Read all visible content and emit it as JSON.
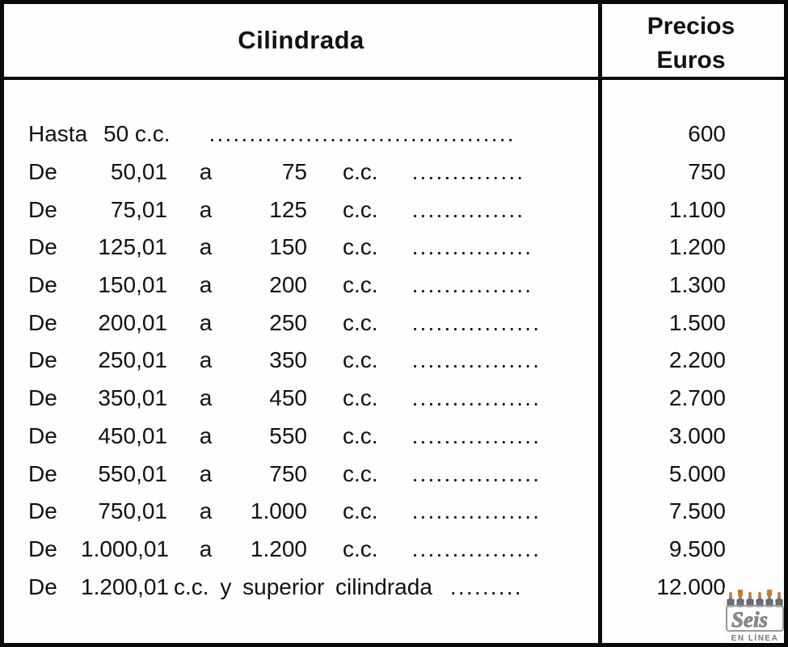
{
  "header": {
    "col1": "Cilindrada",
    "col2_line1": "Precios",
    "col2_line2": "Euros"
  },
  "rows": [
    {
      "kind": "hasta",
      "label": "Hasta",
      "range": "50 c.c.",
      "dots": "......................................",
      "price": "600"
    },
    {
      "kind": "range",
      "label": "De",
      "from": "50,01",
      "conj": "a",
      "to": "75",
      "cc": "c.c.",
      "dots": "..............",
      "price": "750"
    },
    {
      "kind": "range",
      "label": "De",
      "from": "75,01",
      "conj": "a",
      "to": "125",
      "cc": "c.c.",
      "dots": "..............",
      "price": "1.100"
    },
    {
      "kind": "range",
      "label": "De",
      "from": "125,01",
      "conj": "a",
      "to": "150",
      "cc": "c.c.",
      "dots": "...............",
      "price": "1.200"
    },
    {
      "kind": "range",
      "label": "De",
      "from": "150,01",
      "conj": "a",
      "to": "200",
      "cc": "c.c.",
      "dots": "...............",
      "price": "1.300"
    },
    {
      "kind": "range",
      "label": "De",
      "from": "200,01",
      "conj": "a",
      "to": "250",
      "cc": "c.c.",
      "dots": "................",
      "price": "1.500"
    },
    {
      "kind": "range",
      "label": "De",
      "from": "250,01",
      "conj": "a",
      "to": "350",
      "cc": "c.c.",
      "dots": "................",
      "price": "2.200"
    },
    {
      "kind": "range",
      "label": "De",
      "from": "350,01",
      "conj": "a",
      "to": "450",
      "cc": "c.c.",
      "dots": "................",
      "price": "2.700"
    },
    {
      "kind": "range",
      "label": "De",
      "from": "450,01",
      "conj": "a",
      "to": "550",
      "cc": "c.c.",
      "dots": "................",
      "price": "3.000"
    },
    {
      "kind": "range",
      "label": "De",
      "from": "550,01",
      "conj": "a",
      "to": "750",
      "cc": "c.c.",
      "dots": "................",
      "price": "5.000"
    },
    {
      "kind": "range",
      "label": "De",
      "from": "750,01",
      "conj": "a",
      "to": "1.000",
      "cc": "c.c.",
      "dots": "................",
      "price": "7.500"
    },
    {
      "kind": "range",
      "label": "De",
      "from": "1.000,01",
      "conj": "a",
      "to": "1.200",
      "cc": "c.c.",
      "dots": "................",
      "price": "9.500"
    },
    {
      "kind": "superior",
      "label": "De",
      "from": "1.200,01",
      "rest": "c.c. y superior cilindrada",
      "dots": ".........",
      "price": "12.000"
    }
  ],
  "logo": {
    "script": "Seis",
    "caption": "EN LÍNEA",
    "accent_color": "#d9731a",
    "gray_color": "#6e6e6e"
  }
}
